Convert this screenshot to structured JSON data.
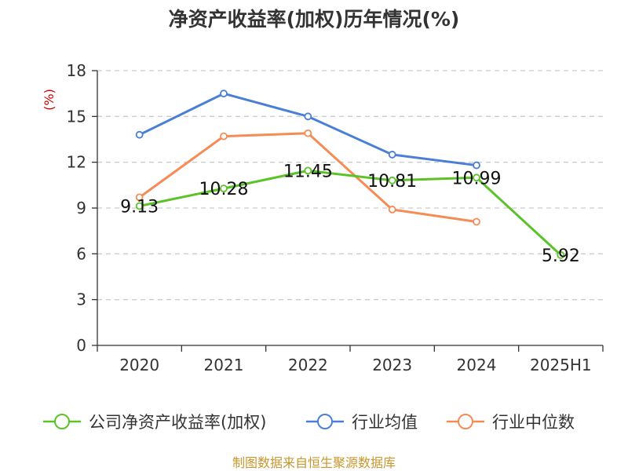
{
  "chart_data": {
    "type": "line",
    "title": "净资产收益率(加权)历年情况(%)",
    "ylabel": "(%)",
    "categories": [
      "2020",
      "2021",
      "2022",
      "2023",
      "2024",
      "2025H1"
    ],
    "ylim": [
      0,
      18
    ],
    "yticks": [
      0,
      3,
      6,
      9,
      12,
      15,
      18
    ],
    "grid": true,
    "legend_position": "bottom",
    "series": [
      {
        "name": "公司净资产收益率(加权)",
        "color": "#5bc228",
        "values": [
          9.13,
          10.28,
          11.45,
          10.81,
          10.99,
          5.92
        ],
        "labels": [
          "9.13",
          "10.28",
          "11.45",
          "10.81",
          "10.99",
          "5.92"
        ]
      },
      {
        "name": "行业均值",
        "color": "#4a7fd6",
        "values": [
          13.8,
          16.5,
          15.0,
          12.5,
          11.8,
          null
        ]
      },
      {
        "name": "行业中位数",
        "color": "#f58b55",
        "values": [
          9.7,
          13.7,
          13.9,
          8.9,
          8.1,
          null
        ]
      }
    ],
    "source": "制图数据来自恒生聚源数据库"
  }
}
